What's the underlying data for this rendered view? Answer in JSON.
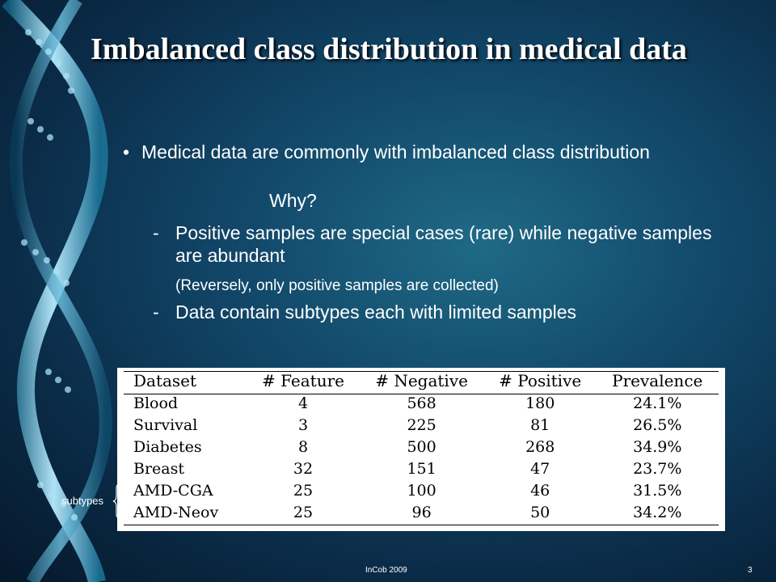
{
  "slide": {
    "title": "Imbalanced class distribution in medical data",
    "bullet": {
      "symbol": "•",
      "text": "Medical data are commonly with imbalanced class distribution",
      "why": "Why?"
    },
    "subbullets": [
      {
        "dash": "-",
        "text": "Positive samples are special cases (rare) while negative samples are abundant"
      },
      {
        "dash": "-",
        "text": "Data contain subtypes each with limited samples"
      }
    ],
    "note": "(Reversely, only positive samples are collected)",
    "table": {
      "headers": [
        "Dataset",
        "# Feature",
        "# Negative",
        "# Positive",
        "Prevalence"
      ],
      "rows": [
        [
          "Blood",
          "4",
          "568",
          "180",
          "24.1%"
        ],
        [
          "Survival",
          "3",
          "225",
          "81",
          "26.5%"
        ],
        [
          "Diabetes",
          "8",
          "500",
          "268",
          "34.9%"
        ],
        [
          "Breast",
          "32",
          "151",
          "47",
          "23.7%"
        ],
        [
          "AMD-CGA",
          "25",
          "100",
          "46",
          "31.5%"
        ],
        [
          "AMD-Neov",
          "25",
          "96",
          "50",
          "34.2%"
        ]
      ]
    },
    "subtypes_label": "subtypes",
    "footer": {
      "center": "InCob 2009",
      "page_number": "3"
    }
  },
  "colors": {
    "background_center": "#1f6a86",
    "background_edge": "#06182b",
    "text": "#ffffff",
    "dna_strand": "#9fd8ee"
  }
}
